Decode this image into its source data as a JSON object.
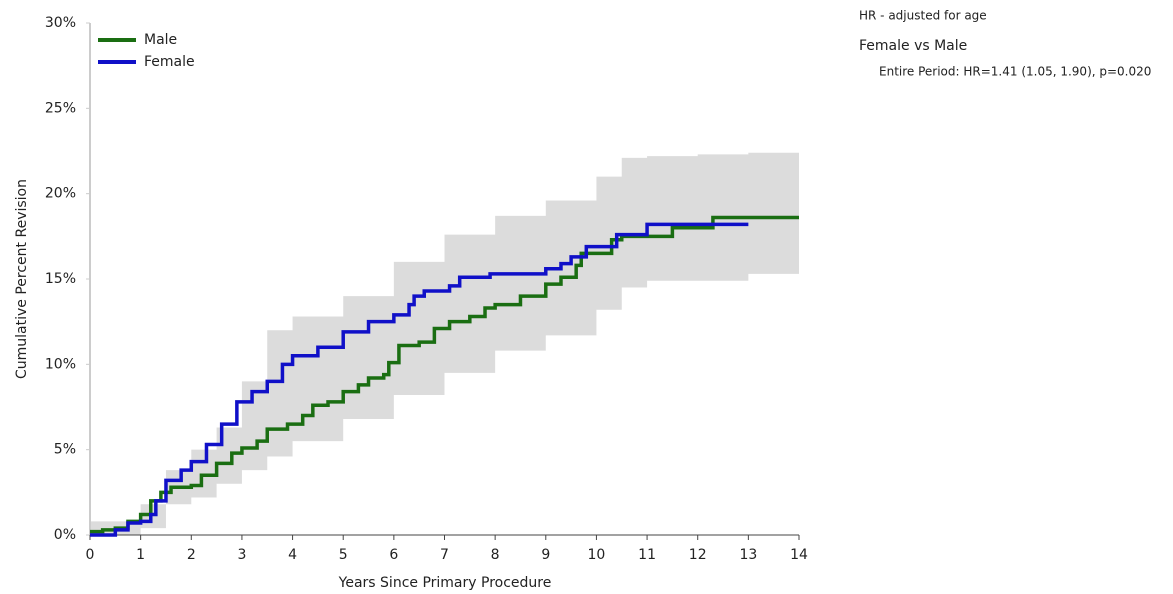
{
  "chart_data": {
    "type": "line",
    "step": true,
    "x_label": "Years Since Primary Procedure",
    "y_label": "Cumulative Percent Revision",
    "xlim": [
      0,
      14
    ],
    "xticks": [
      0,
      1,
      2,
      3,
      4,
      5,
      6,
      7,
      8,
      9,
      10,
      11,
      12,
      13,
      14
    ],
    "ylim": [
      0,
      30
    ],
    "yticks": [
      {
        "value": 0,
        "label": "0%"
      },
      {
        "value": 5,
        "label": "5%"
      },
      {
        "value": 10,
        "label": "10%"
      },
      {
        "value": 15,
        "label": "15%"
      },
      {
        "value": 20,
        "label": "20%"
      },
      {
        "value": 25,
        "label": "25%"
      },
      {
        "value": 30,
        "label": "30%"
      }
    ],
    "legend": "top-left",
    "band": {
      "color": "#dcdcdc",
      "x": [
        0,
        1,
        1.5,
        2,
        2.5,
        3,
        3.5,
        4,
        5,
        6,
        7,
        8,
        9,
        10,
        10.5,
        11,
        12,
        13,
        14
      ],
      "lower": [
        0.0,
        0.4,
        1.8,
        2.2,
        3.0,
        3.8,
        4.6,
        5.5,
        6.8,
        8.2,
        9.5,
        10.8,
        11.7,
        13.2,
        14.5,
        14.9,
        14.9,
        15.3,
        15.3
      ],
      "upper": [
        0.8,
        1.8,
        3.8,
        5.0,
        6.3,
        9.0,
        12.0,
        12.8,
        14.0,
        16.0,
        17.6,
        18.7,
        19.6,
        21.0,
        22.1,
        22.2,
        22.3,
        22.4,
        22.4
      ]
    },
    "series": [
      {
        "name": "Male",
        "color": "#1a6e12",
        "x": [
          0,
          0.25,
          0.5,
          0.75,
          1,
          1.2,
          1.4,
          1.6,
          2,
          2.2,
          2.5,
          2.8,
          3,
          3.3,
          3.5,
          3.9,
          4.2,
          4.4,
          4.7,
          5,
          5.3,
          5.5,
          5.8,
          5.9,
          6.1,
          6.5,
          6.8,
          7.1,
          7.5,
          7.8,
          8,
          8.5,
          9,
          9.3,
          9.6,
          9.7,
          10,
          10.3,
          10.5,
          11.5,
          12.3,
          14
        ],
        "values": [
          0.2,
          0.3,
          0.4,
          0.8,
          1.2,
          2.0,
          2.5,
          2.8,
          2.9,
          3.5,
          4.2,
          4.8,
          5.1,
          5.5,
          6.2,
          6.5,
          7.0,
          7.6,
          7.8,
          8.4,
          8.8,
          9.2,
          9.4,
          10.1,
          11.1,
          11.3,
          12.1,
          12.5,
          12.8,
          13.3,
          13.5,
          14.0,
          14.7,
          15.1,
          15.8,
          16.5,
          16.5,
          17.3,
          17.5,
          18.0,
          18.6,
          18.6
        ]
      },
      {
        "name": "Female",
        "color": "#1010c8",
        "x": [
          0,
          0.5,
          0.75,
          1,
          1.2,
          1.3,
          1.5,
          1.8,
          2,
          2.3,
          2.6,
          2.9,
          3.2,
          3.5,
          3.8,
          4,
          4.5,
          5,
          5.5,
          6,
          6.3,
          6.4,
          6.6,
          7.1,
          7.3,
          7.9,
          9,
          9.3,
          9.5,
          9.8,
          10.4,
          11,
          13
        ],
        "values": [
          0,
          0.3,
          0.7,
          0.8,
          1.2,
          2.0,
          3.2,
          3.8,
          4.3,
          5.3,
          6.5,
          7.8,
          8.4,
          9.0,
          10.0,
          10.5,
          11.0,
          11.9,
          12.5,
          12.9,
          13.5,
          14.0,
          14.3,
          14.6,
          15.1,
          15.3,
          15.6,
          15.9,
          16.3,
          16.9,
          17.6,
          18.2,
          18.2
        ]
      }
    ],
    "annotations": [
      "HR - adjusted for age",
      "Female vs Male",
      "Entire Period: HR=1.41 (1.05, 1.90), p=0.020"
    ]
  }
}
